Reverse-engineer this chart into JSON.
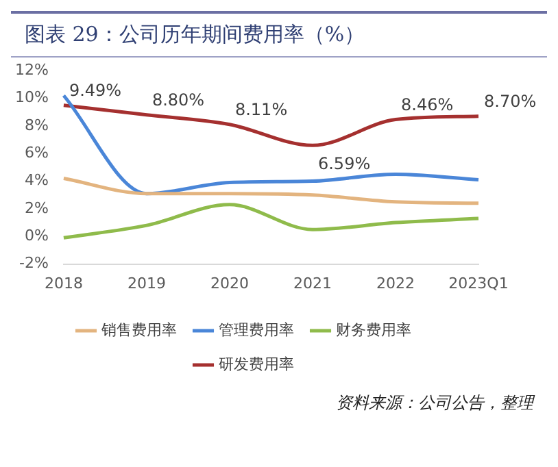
{
  "chart_data": {
    "type": "line",
    "title": "图表 29：公司历年期间费用率（%）",
    "categories": [
      "2018",
      "2019",
      "2020",
      "2021",
      "2022",
      "2023Q1"
    ],
    "series": [
      {
        "name": "销售费用率",
        "color": "#e3b47f",
        "values": [
          4.2,
          3.1,
          3.1,
          3.0,
          2.5,
          2.4
        ]
      },
      {
        "name": "管理费用率",
        "color": "#4a86d8",
        "values": [
          10.2,
          3.1,
          3.9,
          4.0,
          4.5,
          4.1
        ]
      },
      {
        "name": "财务费用率",
        "color": "#8fbb4b",
        "values": [
          -0.1,
          0.8,
          2.3,
          0.5,
          1.0,
          1.3
        ]
      },
      {
        "name": "研发费用率",
        "color": "#a5302f",
        "values": [
          9.49,
          8.8,
          8.11,
          6.59,
          8.46,
          8.7
        ],
        "value_labels": [
          "9.49%",
          "8.80%",
          "8.11%",
          "6.59%",
          "8.46%",
          "8.70%"
        ]
      }
    ],
    "ylim": [
      -2,
      12
    ],
    "yticks": [
      {
        "value": -2,
        "label": "-2%"
      },
      {
        "value": 0,
        "label": "0%"
      },
      {
        "value": 2,
        "label": "2%"
      },
      {
        "value": 4,
        "label": "4%"
      },
      {
        "value": 6,
        "label": "6%"
      },
      {
        "value": 8,
        "label": "8%"
      },
      {
        "value": 10,
        "label": "10%"
      },
      {
        "value": 12,
        "label": "12%"
      }
    ],
    "grid": false,
    "legend": "bottom",
    "marker": "none",
    "line_style": "solid",
    "annotations": [
      "资料来源：公司公告，整理"
    ]
  }
}
